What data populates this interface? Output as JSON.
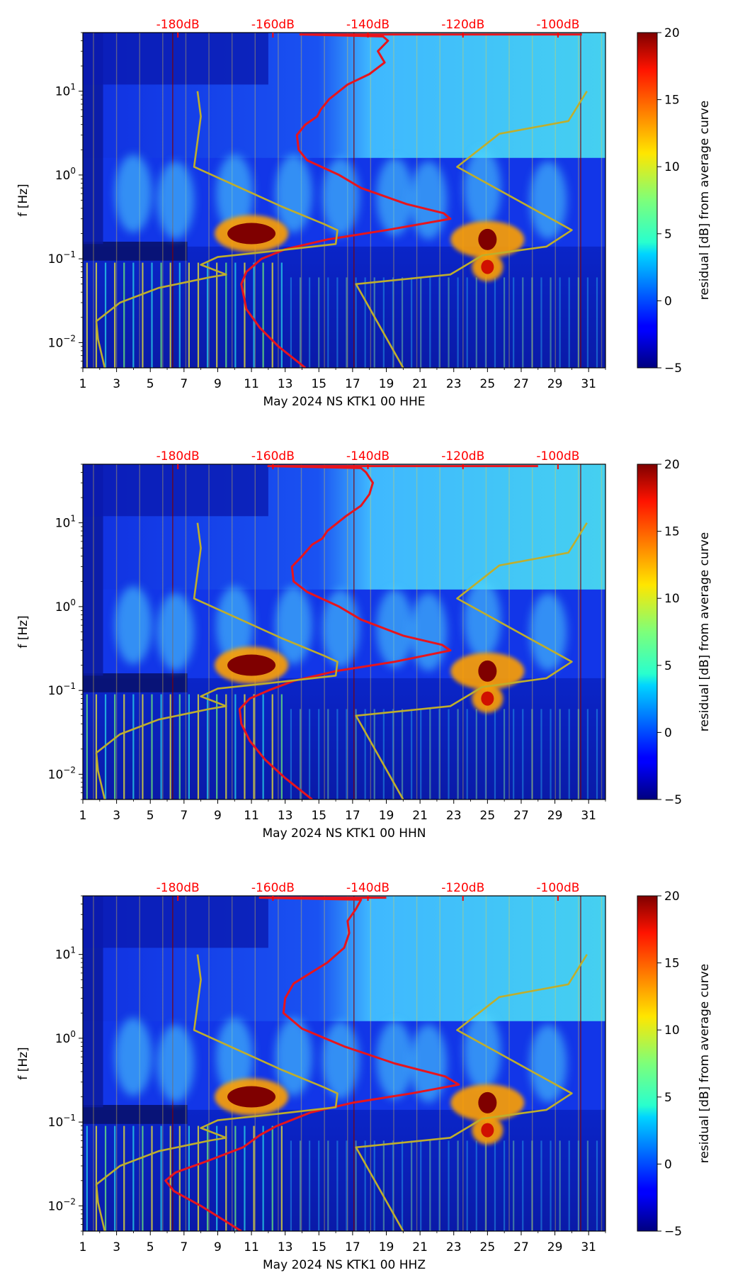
{
  "chart_data": [
    {
      "type": "heatmap",
      "xlabel": "May 2024 NS KTK1 00 HHE",
      "ylabel": "f [Hz]",
      "colorbar_label": "residual [dB] from average curve",
      "x_ticks": [
        1,
        3,
        5,
        7,
        9,
        11,
        13,
        15,
        17,
        19,
        21,
        23,
        25,
        27,
        29,
        31
      ],
      "xlim": [
        1,
        32
      ],
      "y_scale": "log",
      "ylim": [
        0.005,
        50
      ],
      "y_ticks": [
        {
          "value": 0.01,
          "label": "10",
          "exp": "−2"
        },
        {
          "value": 0.1,
          "label": "10",
          "exp": "−1"
        },
        {
          "value": 1,
          "label": "10",
          "exp": "0"
        },
        {
          "value": 10,
          "label": "10",
          "exp": "1"
        }
      ],
      "top_axis": {
        "labels": [
          "-180dB",
          "-160dB",
          "-140dB",
          "-120dB",
          "-100dB"
        ],
        "values": [
          -180,
          -160,
          -140,
          -120,
          -100
        ],
        "color": "#ff0000"
      },
      "colorbar": {
        "range": [
          -5,
          20
        ],
        "ticks": [
          {
            "value": 20,
            "label": "20"
          },
          {
            "value": 15,
            "label": "15"
          },
          {
            "value": 10,
            "label": "10"
          },
          {
            "value": 5,
            "label": "5"
          },
          {
            "value": 0,
            "label": "0"
          },
          {
            "value": -5,
            "label": "−5"
          }
        ],
        "colormap": "jet"
      },
      "hotspots": [
        {
          "day": 11,
          "freq": 0.2,
          "residual_db": 20
        },
        {
          "day": 25,
          "freq": 0.17,
          "residual_db": 20
        },
        {
          "day": 25,
          "freq": 0.08,
          "residual_db": 15
        }
      ],
      "series": [
        {
          "style": "red-line",
          "color": "#e8141c",
          "points": [
            [
              14.2,
              0.005
            ],
            [
              12.6,
              0.009
            ],
            [
              11.5,
              0.015
            ],
            [
              10.7,
              0.025
            ],
            [
              10.4,
              0.05
            ],
            [
              10.7,
              0.07
            ],
            [
              11.6,
              0.1
            ],
            [
              13.0,
              0.13
            ],
            [
              15.5,
              0.17
            ],
            [
              19.0,
              0.22
            ],
            [
              22.8,
              0.3
            ],
            [
              22.4,
              0.35
            ],
            [
              20.2,
              0.45
            ],
            [
              17.5,
              0.7
            ],
            [
              16.2,
              1.0
            ],
            [
              14.3,
              1.5
            ],
            [
              13.8,
              2.0
            ],
            [
              13.7,
              3.0
            ],
            [
              14.2,
              4.0
            ],
            [
              14.9,
              5.0
            ],
            [
              15.1,
              6.0
            ],
            [
              15.6,
              8.0
            ],
            [
              16.7,
              12.0
            ],
            [
              18.0,
              16.0
            ],
            [
              18.9,
              22.0
            ],
            [
              18.5,
              30.0
            ],
            [
              19.1,
              40.0
            ],
            [
              18.8,
              45.0
            ],
            [
              13.9,
              47.5
            ],
            [
              30.6,
              47.5
            ]
          ]
        },
        {
          "style": "olive-line",
          "color": "#bfae2c",
          "points": [
            [
              2.3,
              0.005
            ],
            [
              1.9,
              0.011
            ],
            [
              1.8,
              0.018
            ],
            [
              3.2,
              0.03
            ],
            [
              5.5,
              0.045
            ],
            [
              8.5,
              0.06
            ],
            [
              9.5,
              0.065
            ],
            [
              8.0,
              0.085
            ],
            [
              9.0,
              0.105
            ],
            [
              12.5,
              0.125
            ],
            [
              16.0,
              0.15
            ],
            [
              16.1,
              0.22
            ],
            [
              15.3,
              0.26
            ],
            [
              12.8,
              0.42
            ],
            [
              7.6,
              1.25
            ],
            [
              8.0,
              5.0
            ],
            [
              7.8,
              10.0
            ]
          ]
        },
        {
          "style": "olive-line",
          "color": "#bfae2c",
          "points": [
            [
              20.0,
              0.005
            ],
            [
              17.2,
              0.05
            ],
            [
              22.8,
              0.065
            ],
            [
              24.7,
              0.11
            ],
            [
              28.5,
              0.14
            ],
            [
              30.0,
              0.22
            ],
            [
              23.2,
              1.25
            ],
            [
              25.7,
              3.1
            ],
            [
              29.8,
              4.4
            ],
            [
              30.9,
              10.0
            ]
          ]
        }
      ]
    },
    {
      "type": "heatmap",
      "xlabel": "May 2024 NS KTK1 00 HHN",
      "ylabel": "f [Hz]",
      "colorbar_label": "residual [dB] from average curve",
      "x_ticks": [
        1,
        3,
        5,
        7,
        9,
        11,
        13,
        15,
        17,
        19,
        21,
        23,
        25,
        27,
        29,
        31
      ],
      "xlim": [
        1,
        32
      ],
      "y_scale": "log",
      "ylim": [
        0.005,
        50
      ],
      "y_ticks": [
        {
          "value": 0.01,
          "label": "10",
          "exp": "−2"
        },
        {
          "value": 0.1,
          "label": "10",
          "exp": "−1"
        },
        {
          "value": 1,
          "label": "10",
          "exp": "0"
        },
        {
          "value": 10,
          "label": "10",
          "exp": "1"
        }
      ],
      "top_axis": {
        "labels": [
          "-180dB",
          "-160dB",
          "-140dB",
          "-120dB",
          "-100dB"
        ],
        "values": [
          -180,
          -160,
          -140,
          -120,
          -100
        ],
        "color": "#ff0000"
      },
      "colorbar": {
        "range": [
          -5,
          20
        ],
        "ticks": [
          {
            "value": 20,
            "label": "20"
          },
          {
            "value": 15,
            "label": "15"
          },
          {
            "value": 10,
            "label": "10"
          },
          {
            "value": 5,
            "label": "5"
          },
          {
            "value": 0,
            "label": "0"
          },
          {
            "value": -5,
            "label": "−5"
          }
        ],
        "colormap": "jet"
      },
      "hotspots": [
        {
          "day": 11,
          "freq": 0.2,
          "residual_db": 20
        },
        {
          "day": 25,
          "freq": 0.17,
          "residual_db": 20
        },
        {
          "day": 25,
          "freq": 0.08,
          "residual_db": 15
        }
      ],
      "series": [
        {
          "style": "red-line",
          "color": "#e8141c",
          "points": [
            [
              14.6,
              0.005
            ],
            [
              13.0,
              0.009
            ],
            [
              11.8,
              0.015
            ],
            [
              10.9,
              0.025
            ],
            [
              10.4,
              0.04
            ],
            [
              10.3,
              0.06
            ],
            [
              10.9,
              0.08
            ],
            [
              12.0,
              0.1
            ],
            [
              13.5,
              0.13
            ],
            [
              16.0,
              0.17
            ],
            [
              19.5,
              0.22
            ],
            [
              22.8,
              0.3
            ],
            [
              22.3,
              0.35
            ],
            [
              20.0,
              0.45
            ],
            [
              17.5,
              0.7
            ],
            [
              16.2,
              1.0
            ],
            [
              14.3,
              1.5
            ],
            [
              13.5,
              2.0
            ],
            [
              13.4,
              3.0
            ],
            [
              14.0,
              4.0
            ],
            [
              14.6,
              5.5
            ],
            [
              15.2,
              6.5
            ],
            [
              15.5,
              8.0
            ],
            [
              16.6,
              12.0
            ],
            [
              17.5,
              16.0
            ],
            [
              18.0,
              22.0
            ],
            [
              18.2,
              30.0
            ],
            [
              17.8,
              40.0
            ],
            [
              17.5,
              45.0
            ],
            [
              12.0,
              47.5
            ],
            [
              28.0,
              47.5
            ]
          ]
        },
        {
          "style": "olive-line",
          "color": "#bfae2c",
          "points": [
            [
              2.3,
              0.005
            ],
            [
              1.9,
              0.011
            ],
            [
              1.8,
              0.018
            ],
            [
              3.2,
              0.03
            ],
            [
              5.5,
              0.045
            ],
            [
              8.5,
              0.06
            ],
            [
              9.5,
              0.065
            ],
            [
              8.0,
              0.085
            ],
            [
              9.0,
              0.105
            ],
            [
              12.5,
              0.125
            ],
            [
              16.0,
              0.15
            ],
            [
              16.1,
              0.22
            ],
            [
              15.3,
              0.26
            ],
            [
              12.8,
              0.42
            ],
            [
              7.6,
              1.25
            ],
            [
              8.0,
              5.0
            ],
            [
              7.8,
              10.0
            ]
          ]
        },
        {
          "style": "olive-line",
          "color": "#bfae2c",
          "points": [
            [
              20.0,
              0.005
            ],
            [
              17.2,
              0.05
            ],
            [
              22.8,
              0.065
            ],
            [
              24.7,
              0.11
            ],
            [
              28.5,
              0.14
            ],
            [
              30.0,
              0.22
            ],
            [
              23.2,
              1.25
            ],
            [
              25.7,
              3.1
            ],
            [
              29.8,
              4.4
            ],
            [
              30.9,
              10.0
            ]
          ]
        }
      ]
    },
    {
      "type": "heatmap",
      "xlabel": "May 2024 NS KTK1 00 HHZ",
      "ylabel": "f [Hz]",
      "colorbar_label": "residual [dB] from average curve",
      "x_ticks": [
        1,
        3,
        5,
        7,
        9,
        11,
        13,
        15,
        17,
        19,
        21,
        23,
        25,
        27,
        29,
        31
      ],
      "xlim": [
        1,
        32
      ],
      "y_scale": "log",
      "ylim": [
        0.005,
        50
      ],
      "y_ticks": [
        {
          "value": 0.01,
          "label": "10",
          "exp": "−2"
        },
        {
          "value": 0.1,
          "label": "10",
          "exp": "−1"
        },
        {
          "value": 1,
          "label": "10",
          "exp": "0"
        },
        {
          "value": 10,
          "label": "10",
          "exp": "1"
        }
      ],
      "top_axis": {
        "labels": [
          "-180dB",
          "-160dB",
          "-140dB",
          "-120dB",
          "-100dB"
        ],
        "values": [
          -180,
          -160,
          -140,
          -120,
          -100
        ],
        "color": "#ff0000"
      },
      "colorbar": {
        "range": [
          -5,
          20
        ],
        "ticks": [
          {
            "value": 20,
            "label": "20"
          },
          {
            "value": 15,
            "label": "15"
          },
          {
            "value": 10,
            "label": "10"
          },
          {
            "value": 5,
            "label": "5"
          },
          {
            "value": 0,
            "label": "0"
          },
          {
            "value": -5,
            "label": "−5"
          }
        ],
        "colormap": "jet"
      },
      "hotspots": [
        {
          "day": 11,
          "freq": 0.2,
          "residual_db": 20
        },
        {
          "day": 25,
          "freq": 0.17,
          "residual_db": 20
        },
        {
          "day": 25,
          "freq": 0.08,
          "residual_db": 15
        }
      ],
      "series": [
        {
          "style": "red-line",
          "color": "#e8141c",
          "points": [
            [
              10.4,
              0.005
            ],
            [
              8.0,
              0.01
            ],
            [
              6.4,
              0.015
            ],
            [
              5.9,
              0.02
            ],
            [
              6.5,
              0.025
            ],
            [
              8.5,
              0.035
            ],
            [
              10.5,
              0.05
            ],
            [
              11.5,
              0.07
            ],
            [
              12.5,
              0.09
            ],
            [
              14.5,
              0.13
            ],
            [
              17.0,
              0.17
            ],
            [
              20.5,
              0.22
            ],
            [
              23.3,
              0.28
            ],
            [
              22.5,
              0.35
            ],
            [
              19.5,
              0.5
            ],
            [
              16.5,
              0.8
            ],
            [
              14.0,
              1.3
            ],
            [
              12.9,
              2.0
            ],
            [
              13.0,
              3.0
            ],
            [
              13.5,
              4.5
            ],
            [
              14.5,
              6.0
            ],
            [
              15.5,
              8.0
            ],
            [
              16.5,
              12.0
            ],
            [
              16.8,
              18.0
            ],
            [
              16.7,
              25.0
            ],
            [
              17.2,
              35.0
            ],
            [
              17.5,
              45.0
            ],
            [
              11.5,
              47.5
            ],
            [
              19.0,
              47.5
            ]
          ]
        },
        {
          "style": "olive-line",
          "color": "#bfae2c",
          "points": [
            [
              2.3,
              0.005
            ],
            [
              1.9,
              0.011
            ],
            [
              1.8,
              0.018
            ],
            [
              3.2,
              0.03
            ],
            [
              5.5,
              0.045
            ],
            [
              8.5,
              0.06
            ],
            [
              9.5,
              0.065
            ],
            [
              8.0,
              0.085
            ],
            [
              9.0,
              0.105
            ],
            [
              12.5,
              0.125
            ],
            [
              16.0,
              0.15
            ],
            [
              16.1,
              0.22
            ],
            [
              15.3,
              0.26
            ],
            [
              12.8,
              0.42
            ],
            [
              7.6,
              1.25
            ],
            [
              8.0,
              5.0
            ],
            [
              7.8,
              10.0
            ]
          ]
        },
        {
          "style": "olive-line",
          "color": "#bfae2c",
          "points": [
            [
              20.0,
              0.005
            ],
            [
              17.2,
              0.05
            ],
            [
              22.8,
              0.065
            ],
            [
              24.7,
              0.11
            ],
            [
              28.5,
              0.14
            ],
            [
              30.0,
              0.22
            ],
            [
              23.2,
              1.25
            ],
            [
              25.7,
              3.1
            ],
            [
              29.8,
              4.4
            ],
            [
              30.9,
              10.0
            ]
          ]
        }
      ]
    }
  ]
}
